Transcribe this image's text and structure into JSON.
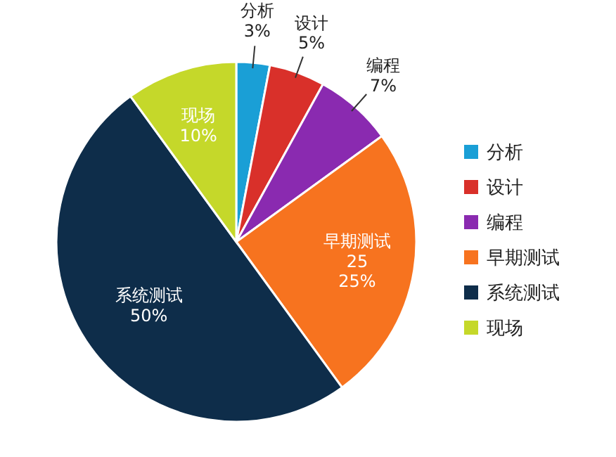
{
  "chart_data": {
    "type": "pie",
    "categories": [
      "分析",
      "设计",
      "编程",
      "早期测试",
      "系统测试",
      "现场"
    ],
    "values": [
      3,
      5,
      7,
      25,
      50,
      10
    ],
    "value_labels": [
      "3%",
      "5%",
      "7%",
      "25\n25%",
      "50%",
      "10%"
    ],
    "colors": [
      "#1a9fd6",
      "#d9302a",
      "#8a2ab0",
      "#f7731f",
      "#0e2d4a",
      "#c5d82a"
    ],
    "legend": "right"
  }
}
